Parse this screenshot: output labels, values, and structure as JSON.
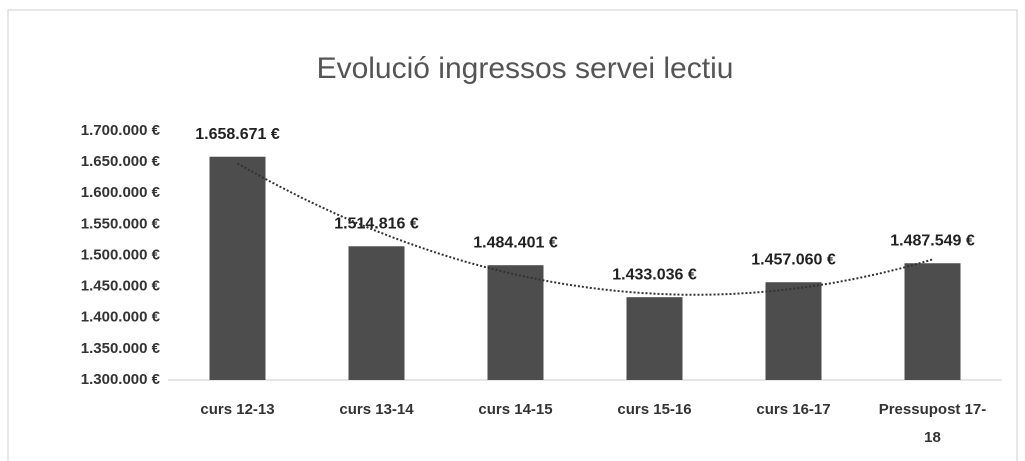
{
  "chart_data": {
    "type": "bar",
    "title": "Evolució ingressos servei lectiu",
    "categories": [
      "curs 12-13",
      "curs 13-14",
      "curs 14-15",
      "curs 15-16",
      "curs 16-17",
      "Pressupost 17-18"
    ],
    "values": [
      1658671,
      1514816,
      1484401,
      1433036,
      1457060,
      1487549
    ],
    "value_labels": [
      "1.658.671 €",
      "1.514.816 €",
      "1.484.401 €",
      "1.433.036 €",
      "1.457.060 €",
      "1.487.549 €"
    ],
    "color": "#4d4d4d",
    "ylim": [
      1300000,
      1700000
    ],
    "yticks": [
      {
        "value": 1300000,
        "label": "1.300.000 €"
      },
      {
        "value": 1350000,
        "label": "1.350.000 €"
      },
      {
        "value": 1400000,
        "label": "1.400.000 €"
      },
      {
        "value": 1450000,
        "label": "1.450.000 €"
      },
      {
        "value": 1500000,
        "label": "1.500.000 €"
      },
      {
        "value": 1550000,
        "label": "1.550.000 €"
      },
      {
        "value": 1600000,
        "label": "1.600.000 €"
      },
      {
        "value": 1650000,
        "label": "1.650.000 €"
      },
      {
        "value": 1700000,
        "label": "1.700.000 €"
      }
    ],
    "grid": false,
    "trendline": true
  }
}
